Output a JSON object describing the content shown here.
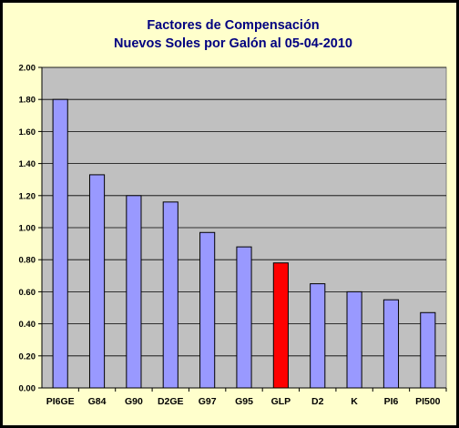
{
  "chart_data": {
    "type": "bar",
    "title": "Factores de Compensación",
    "subtitle": "Nuevos Soles por Galón al 05-04-2010",
    "xlabel": "",
    "ylabel": "",
    "categories": [
      "PI6GE",
      "G84",
      "G90",
      "D2GE",
      "G97",
      "G95",
      "GLP",
      "D2",
      "K",
      "PI6",
      "PI500"
    ],
    "values": [
      1.8,
      1.33,
      1.2,
      1.16,
      0.97,
      0.88,
      0.78,
      0.65,
      0.6,
      0.55,
      0.47
    ],
    "ylim": [
      0,
      2.0
    ],
    "yticks": [
      "0.00",
      "0.20",
      "0.40",
      "0.60",
      "0.80",
      "1.00",
      "1.20",
      "1.40",
      "1.60",
      "1.80",
      "2.00"
    ],
    "grid": true,
    "legend": "none",
    "colors": {
      "background": "#ffffcc",
      "plot_area": "#c0c0c0",
      "bar": "#9999ff",
      "highlight_bar": "#ff0000",
      "title": "#000080",
      "border": "#000000"
    },
    "highlight_category": "GLP"
  }
}
